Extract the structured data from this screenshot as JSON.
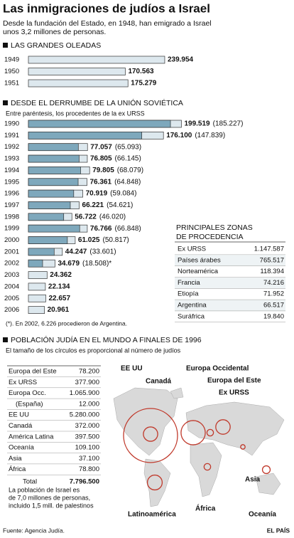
{
  "title": "Las inmigraciones de judíos a Israel",
  "subtitle": [
    "Desde la fundación del Estado, en 1948, han emigrado a Israel",
    "unos 3,2 millones de personas."
  ],
  "chart_data": [
    {
      "type": "bar",
      "title": "LAS GRANDES OLEADAS",
      "categories": [
        "1949",
        "1950",
        "1951"
      ],
      "values": [
        239954,
        170563,
        175279
      ],
      "value_labels": [
        "239.954",
        "170.563",
        "175.279"
      ],
      "color": "#dde8ee",
      "xlim": [
        0,
        250000
      ]
    },
    {
      "type": "bar",
      "title": "DESDE EL DERRUMBE DE LA UNIÓN SOVIÉTICA",
      "subtitle": "Entre paréntesis, los procedentes de la ex URSS",
      "categories": [
        "1990",
        "1991",
        "1992",
        "1993",
        "1994",
        "1995",
        "1996",
        "1997",
        "1998",
        "1999",
        "2000",
        "2001",
        "2002",
        "2003",
        "2004",
        "2005",
        "2006"
      ],
      "series": [
        {
          "color": "#dde8ee",
          "values": [
            199519,
            176100,
            77057,
            76805,
            79805,
            76361,
            70919,
            66221,
            56722,
            76766,
            61025,
            44247,
            34679,
            24362,
            22134,
            22657,
            20961
          ],
          "value_labels": [
            "199.519",
            "176.100",
            "77.057",
            "76.805",
            "79.805",
            "76.361",
            "70.919",
            "66.221",
            "56.722",
            "76.766",
            "61.025",
            "44.247",
            "34.679",
            "24.362",
            "22.134",
            "22.657",
            "20.961"
          ]
        },
        {
          "color": "#7ea8bc",
          "values": [
            185227,
            147839,
            65093,
            66145,
            68079,
            64848,
            59084,
            54621,
            46020,
            66848,
            50817,
            33601,
            18508,
            null,
            null,
            null,
            null
          ],
          "value_labels": [
            "(185.227)",
            "(147.839)",
            "(65.093)",
            "(66.145)",
            "(68.079)",
            "(64.848)",
            "(59.084)",
            "(54.621)",
            "(46.020)",
            "(66.848)",
            "(50.817)",
            "(33.601)",
            "(18.508)*",
            null,
            null,
            null,
            null
          ]
        }
      ],
      "xlim": [
        0,
        200000
      ],
      "note": "(*). En 2002, 6.226 procedieron de Argentina."
    },
    {
      "type": "bubble",
      "title": "POBLACIÓN JUDÍA EN EL MUNDO A FINALES DE 1996",
      "subtitle": "El tamaño de los círculos es proporcional al número de judíos",
      "categories": [
        "Europa del Este",
        "Ex URSS",
        "Europa Occ.",
        "(España)",
        "EE UU",
        "Canadá",
        "América Latina",
        "Oceanía",
        "Asia",
        "África"
      ],
      "values": [
        78200,
        377900,
        1065900,
        12000,
        5280000,
        372000,
        397500,
        109100,
        37100,
        78800
      ],
      "value_labels": [
        "78.200",
        "377.900",
        "1.065.900",
        "12.000",
        "5.280.000",
        "372.000",
        "397.500",
        "109.100",
        "37.100",
        "78.800"
      ],
      "map_labels": [
        "Europa del Este",
        "Ex URSS",
        "Europa Occidental",
        null,
        "EE UU",
        "Canadá",
        "Latinoamérica",
        "Oceanía",
        "Asia",
        "África"
      ],
      "color": "#c0392b",
      "total": [
        "Total",
        "7.796.500"
      ],
      "note": [
        "La población de Israel es",
        "de 7,0 millones de personas,",
        "incluido 1,5 mill. de palestinos"
      ]
    }
  ],
  "zones": {
    "title": [
      "PRINCIPALES ZONAS",
      "DE PROCEDENCIA"
    ],
    "rows": [
      [
        "Ex URSS",
        "1.147.587"
      ],
      [
        "Países árabes",
        "765.517"
      ],
      [
        "Norteamérica",
        "118.394"
      ],
      [
        "Francia",
        "74.216"
      ],
      [
        "Etiopía",
        "71.952"
      ],
      [
        "Argentina",
        "66.517"
      ],
      [
        "Suráfrica",
        "19.840"
      ]
    ]
  },
  "footer": {
    "source": "Fuente: Agencia Judía.",
    "brand": "EL PAÍS"
  }
}
